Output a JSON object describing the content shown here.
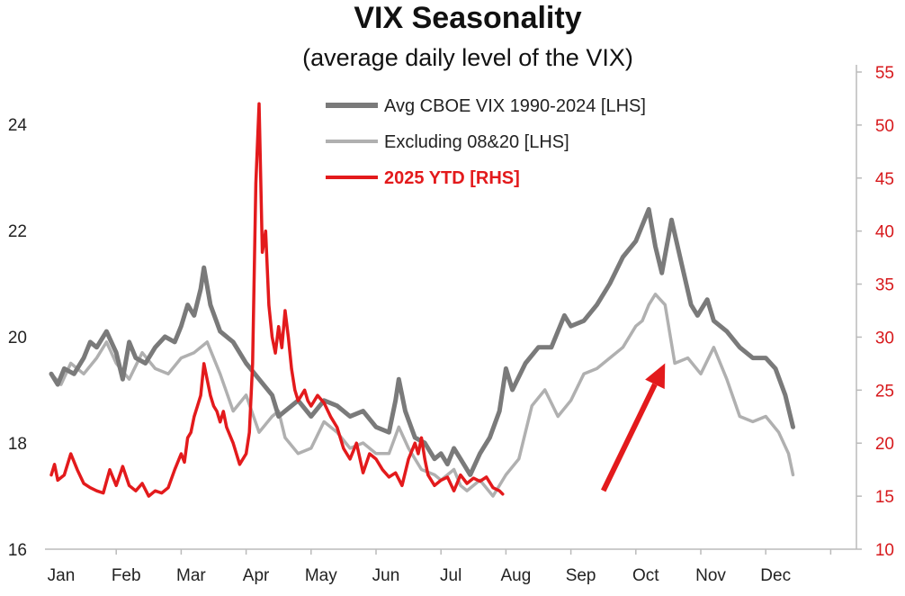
{
  "chart_data": {
    "type": "line",
    "title": "VIX Seasonality",
    "subtitle": "(average daily level of the VIX)",
    "x_categories": [
      "Jan",
      "Feb",
      "Mar",
      "Apr",
      "May",
      "Jun",
      "Jul",
      "Aug",
      "Sep",
      "Oct",
      "Nov",
      "Dec"
    ],
    "y_left": {
      "min": 16,
      "max": 24,
      "ticks": [
        16,
        18,
        20,
        22,
        24
      ]
    },
    "y_right": {
      "min": 10,
      "max": 55,
      "ticks": [
        10,
        15,
        20,
        25,
        30,
        35,
        40,
        45,
        50,
        55
      ]
    },
    "grid": false,
    "legend_position": "top-center",
    "legend": [
      {
        "label": "Avg CBOE VIX 1990-2024 [LHS]",
        "color": "#7a7a7a"
      },
      {
        "label": "Excluding 08&20 [LHS]",
        "color": "#b0b0b0"
      },
      {
        "label": "2025 YTD [RHS]",
        "color": "#e31a1c"
      }
    ],
    "annotation": {
      "type": "arrow",
      "color": "#e31a1c",
      "from": [
        8.5,
        17.1
      ],
      "to": [
        9.45,
        19.5
      ],
      "axis": "left"
    },
    "series": [
      {
        "name": "Avg CBOE VIX 1990-2024 [LHS]",
        "axis": "left",
        "color": "#7a7a7a",
        "x": [
          0.0,
          0.1,
          0.2,
          0.35,
          0.5,
          0.6,
          0.7,
          0.85,
          1.0,
          1.1,
          1.2,
          1.3,
          1.45,
          1.6,
          1.75,
          1.9,
          2.0,
          2.1,
          2.2,
          2.3,
          2.35,
          2.45,
          2.6,
          2.8,
          3.0,
          3.2,
          3.4,
          3.5,
          3.6,
          3.8,
          4.0,
          4.2,
          4.4,
          4.6,
          4.8,
          5.0,
          5.2,
          5.3,
          5.35,
          5.45,
          5.6,
          5.75,
          5.9,
          6.0,
          6.1,
          6.2,
          6.3,
          6.45,
          6.6,
          6.75,
          6.9,
          7.0,
          7.1,
          7.3,
          7.5,
          7.7,
          7.9,
          8.0,
          8.2,
          8.4,
          8.6,
          8.8,
          9.0,
          9.2,
          9.3,
          9.4,
          9.55,
          9.7,
          9.85,
          9.95,
          10.1,
          10.2,
          10.4,
          10.6,
          10.8,
          11.0,
          11.15,
          11.3,
          11.42
        ],
        "y": [
          19.3,
          19.1,
          19.4,
          19.3,
          19.6,
          19.9,
          19.8,
          20.1,
          19.7,
          19.2,
          19.9,
          19.6,
          19.5,
          19.8,
          20.0,
          19.9,
          20.2,
          20.6,
          20.4,
          20.9,
          21.3,
          20.6,
          20.1,
          19.9,
          19.5,
          19.2,
          18.9,
          18.5,
          18.6,
          18.8,
          18.5,
          18.8,
          18.7,
          18.5,
          18.6,
          18.3,
          18.2,
          18.8,
          19.2,
          18.6,
          18.1,
          18.0,
          17.7,
          17.8,
          17.6,
          17.9,
          17.7,
          17.4,
          17.8,
          18.1,
          18.6,
          19.4,
          19.0,
          19.5,
          19.8,
          19.8,
          20.4,
          20.2,
          20.3,
          20.6,
          21.0,
          21.5,
          21.8,
          22.4,
          21.7,
          21.2,
          22.2,
          21.4,
          20.6,
          20.4,
          20.7,
          20.3,
          20.1,
          19.8,
          19.6,
          19.6,
          19.4,
          18.9,
          18.3
        ]
      },
      {
        "name": "Excluding 08&20 [LHS]",
        "axis": "left",
        "color": "#b0b0b0",
        "x": [
          0.0,
          0.15,
          0.3,
          0.5,
          0.7,
          0.85,
          1.0,
          1.2,
          1.4,
          1.6,
          1.8,
          2.0,
          2.2,
          2.4,
          2.6,
          2.8,
          3.0,
          3.2,
          3.4,
          3.5,
          3.6,
          3.8,
          4.0,
          4.2,
          4.4,
          4.6,
          4.8,
          5.0,
          5.2,
          5.35,
          5.5,
          5.7,
          5.9,
          6.0,
          6.2,
          6.3,
          6.4,
          6.6,
          6.8,
          7.0,
          7.2,
          7.4,
          7.6,
          7.8,
          8.0,
          8.2,
          8.4,
          8.6,
          8.8,
          9.0,
          9.1,
          9.2,
          9.3,
          9.45,
          9.6,
          9.8,
          10.0,
          10.2,
          10.4,
          10.6,
          10.8,
          11.0,
          11.2,
          11.35,
          11.42
        ],
        "y": [
          19.3,
          19.1,
          19.5,
          19.3,
          19.6,
          19.9,
          19.5,
          19.2,
          19.7,
          19.4,
          19.3,
          19.6,
          19.7,
          19.9,
          19.3,
          18.6,
          18.9,
          18.2,
          18.5,
          18.6,
          18.1,
          17.8,
          17.9,
          18.4,
          18.2,
          17.9,
          18.0,
          17.8,
          17.8,
          18.3,
          17.9,
          17.5,
          17.4,
          17.3,
          17.5,
          17.2,
          17.1,
          17.3,
          17.0,
          17.4,
          17.7,
          18.7,
          19.0,
          18.5,
          18.8,
          19.3,
          19.4,
          19.6,
          19.8,
          20.2,
          20.3,
          20.6,
          20.8,
          20.6,
          19.5,
          19.6,
          19.3,
          19.8,
          19.2,
          18.5,
          18.4,
          18.5,
          18.2,
          17.8,
          17.4
        ]
      },
      {
        "name": "2025 YTD [RHS]",
        "axis": "right",
        "color": "#e31a1c",
        "x": [
          0.0,
          0.05,
          0.1,
          0.2,
          0.3,
          0.4,
          0.5,
          0.6,
          0.7,
          0.8,
          0.9,
          1.0,
          1.1,
          1.2,
          1.3,
          1.4,
          1.5,
          1.6,
          1.7,
          1.8,
          1.9,
          2.0,
          2.05,
          2.1,
          2.15,
          2.2,
          2.25,
          2.3,
          2.35,
          2.4,
          2.45,
          2.5,
          2.55,
          2.6,
          2.65,
          2.7,
          2.8,
          2.9,
          3.0,
          3.05,
          3.1,
          3.15,
          3.2,
          3.25,
          3.3,
          3.35,
          3.4,
          3.45,
          3.5,
          3.55,
          3.6,
          3.65,
          3.7,
          3.75,
          3.8,
          3.85,
          3.9,
          3.95,
          4.0,
          4.1,
          4.2,
          4.3,
          4.4,
          4.5,
          4.6,
          4.7,
          4.8,
          4.9,
          5.0,
          5.1,
          5.2,
          5.3,
          5.4,
          5.5,
          5.6,
          5.65,
          5.7,
          5.75,
          5.8,
          5.9,
          6.0,
          6.1,
          6.2,
          6.3,
          6.4,
          6.5,
          6.6,
          6.7,
          6.8,
          6.9,
          6.95
        ],
        "y": [
          17.0,
          18.0,
          16.5,
          17.0,
          19.0,
          17.5,
          16.2,
          15.8,
          15.5,
          15.3,
          17.5,
          16.0,
          17.8,
          16.0,
          15.5,
          16.2,
          15.0,
          15.5,
          15.3,
          15.8,
          17.5,
          19.0,
          18.2,
          20.5,
          21.0,
          22.5,
          23.5,
          24.5,
          27.5,
          26.0,
          24.5,
          23.5,
          23.0,
          22.0,
          23.0,
          21.5,
          20.0,
          18.0,
          19.0,
          21.0,
          27.5,
          44.5,
          52.0,
          38.0,
          40.0,
          33.0,
          30.0,
          28.5,
          31.0,
          29.0,
          32.5,
          30.0,
          27.0,
          25.0,
          24.0,
          24.5,
          25.0,
          24.0,
          23.5,
          24.5,
          23.8,
          22.5,
          21.5,
          19.5,
          18.5,
          20.0,
          17.2,
          19.0,
          18.5,
          17.5,
          16.8,
          17.2,
          16.0,
          18.5,
          20.0,
          19.0,
          20.5,
          18.5,
          17.0,
          16.0,
          16.5,
          16.8,
          15.5,
          17.0,
          16.2,
          16.7,
          16.4,
          16.8,
          15.8,
          15.5,
          15.2
        ]
      }
    ]
  }
}
